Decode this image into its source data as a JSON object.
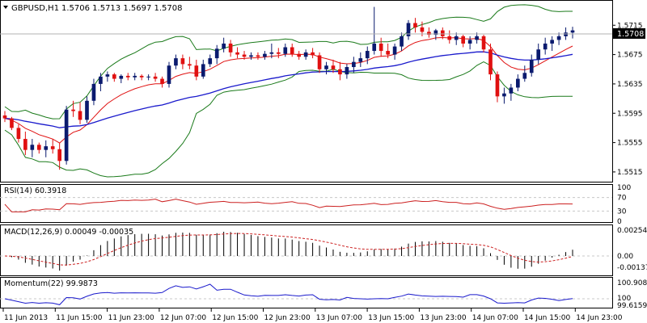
{
  "chart": {
    "symbol": "GBPUSD,H1",
    "ohlc_text": "1.5706 1.5713 1.5697 1.5708",
    "current_price": "1.5708",
    "price_ticks": [
      "1.5715",
      "1.5675",
      "1.5635",
      "1.5595",
      "1.5555",
      "1.5515"
    ],
    "time_labels": [
      "11 Jun 2013",
      "11 Jun 15:00",
      "11 Jun 23:00",
      "12 Jun 07:00",
      "12 Jun 15:00",
      "12 Jun 23:00",
      "13 Jun 07:00",
      "13 Jun 15:00",
      "13 Jun 23:00",
      "14 Jun 07:00",
      "14 Jun 15:00",
      "14 Jun 23:00"
    ]
  },
  "rsi": {
    "label": "RSI(14) 60.3918",
    "levels": [
      "100",
      "70",
      "30",
      "0"
    ]
  },
  "macd": {
    "label": "MACD(12,26,9) 0.00049 -0.00035",
    "ticks": [
      "0.00254",
      "0.00",
      "-0.00137"
    ]
  },
  "momentum": {
    "label": "Momentum(22) 99.9873",
    "ticks": [
      "100.9082",
      "100",
      "99.6159"
    ]
  },
  "colors": {
    "up_body": "#0a1a6e",
    "down_body": "#e01010",
    "bollinger": "#1a7a1a",
    "ma_fast": "#e01010",
    "ma_slow": "#1a1acc",
    "rsi_line": "#cc2020",
    "macd_hist": "#000000",
    "macd_signal": "#cc2020",
    "momentum_line": "#1a1acc",
    "grid": "#c8c8c8"
  },
  "chart_data": {
    "type": "candlestick",
    "candles": [
      [
        1.5592,
        1.5598,
        1.5583,
        1.5588
      ],
      [
        1.5588,
        1.559,
        1.5572,
        1.5575
      ],
      [
        1.5575,
        1.558,
        1.5555,
        1.556
      ],
      [
        1.556,
        1.557,
        1.5538,
        1.5545
      ],
      [
        1.5545,
        1.556,
        1.5535,
        1.5552
      ],
      [
        1.5552,
        1.5555,
        1.554,
        1.5545
      ],
      [
        1.5545,
        1.5558,
        1.5535,
        1.555
      ],
      [
        1.555,
        1.556,
        1.554,
        1.5546
      ],
      [
        1.5546,
        1.5555,
        1.5518,
        1.553
      ],
      [
        1.553,
        1.5605,
        1.5525,
        1.56
      ],
      [
        1.56,
        1.5612,
        1.559,
        1.5598
      ],
      [
        1.5598,
        1.561,
        1.558,
        1.5586
      ],
      [
        1.5586,
        1.5618,
        1.5582,
        1.5612
      ],
      [
        1.5612,
        1.5642,
        1.5606,
        1.5635
      ],
      [
        1.5635,
        1.565,
        1.5625,
        1.5645
      ],
      [
        1.5645,
        1.5652,
        1.5638,
        1.5648
      ],
      [
        1.5648,
        1.565,
        1.5638,
        1.5642
      ],
      [
        1.5642,
        1.5648,
        1.5636,
        1.5646
      ],
      [
        1.5646,
        1.565,
        1.564,
        1.5644
      ],
      [
        1.5644,
        1.565,
        1.564,
        1.5646
      ],
      [
        1.5646,
        1.5648,
        1.564,
        1.5644
      ],
      [
        1.5644,
        1.5648,
        1.564,
        1.5645
      ],
      [
        1.5645,
        1.565,
        1.5638,
        1.5642
      ],
      [
        1.5642,
        1.5645,
        1.563,
        1.5635
      ],
      [
        1.5635,
        1.5665,
        1.563,
        1.566
      ],
      [
        1.566,
        1.5675,
        1.5655,
        1.567
      ],
      [
        1.567,
        1.5675,
        1.5655,
        1.5662
      ],
      [
        1.5662,
        1.5672,
        1.5655,
        1.566
      ],
      [
        1.566,
        1.5668,
        1.564,
        1.5645
      ],
      [
        1.5645,
        1.5668,
        1.5642,
        1.5662
      ],
      [
        1.5662,
        1.5675,
        1.5658,
        1.567
      ],
      [
        1.567,
        1.5688,
        1.5662,
        1.5683
      ],
      [
        1.5683,
        1.5698,
        1.5678,
        1.569
      ],
      [
        1.569,
        1.5695,
        1.5672,
        1.5678
      ],
      [
        1.5678,
        1.5685,
        1.567,
        1.5675
      ],
      [
        1.5675,
        1.568,
        1.5668,
        1.5672
      ],
      [
        1.5672,
        1.5678,
        1.5668,
        1.5674
      ],
      [
        1.5674,
        1.5678,
        1.5668,
        1.5672
      ],
      [
        1.5672,
        1.568,
        1.5668,
        1.5676
      ],
      [
        1.5676,
        1.569,
        1.567,
        1.5678
      ],
      [
        1.5678,
        1.5684,
        1.567,
        1.5676
      ],
      [
        1.5676,
        1.569,
        1.5672,
        1.5685
      ],
      [
        1.5685,
        1.569,
        1.5672,
        1.5676
      ],
      [
        1.5676,
        1.568,
        1.5668,
        1.5672
      ],
      [
        1.5672,
        1.5682,
        1.5668,
        1.5678
      ],
      [
        1.5678,
        1.5684,
        1.567,
        1.5674
      ],
      [
        1.5674,
        1.5678,
        1.565,
        1.5655
      ],
      [
        1.5655,
        1.5665,
        1.5648,
        1.566
      ],
      [
        1.566,
        1.5668,
        1.565,
        1.5655
      ],
      [
        1.5655,
        1.5665,
        1.564,
        1.5648
      ],
      [
        1.5648,
        1.5662,
        1.5642,
        1.5658
      ],
      [
        1.5658,
        1.5672,
        1.565,
        1.5665
      ],
      [
        1.5665,
        1.5678,
        1.5658,
        1.567
      ],
      [
        1.567,
        1.5686,
        1.5662,
        1.568
      ],
      [
        1.568,
        1.574,
        1.5675,
        1.569
      ],
      [
        1.569,
        1.5698,
        1.5672,
        1.568
      ],
      [
        1.568,
        1.569,
        1.567,
        1.5675
      ],
      [
        1.5675,
        1.569,
        1.5668,
        1.5686
      ],
      [
        1.5686,
        1.5705,
        1.568,
        1.57
      ],
      [
        1.57,
        1.5722,
        1.5695,
        1.5718
      ],
      [
        1.5718,
        1.5725,
        1.5705,
        1.5712
      ],
      [
        1.5712,
        1.572,
        1.57,
        1.5706
      ],
      [
        1.5706,
        1.5712,
        1.5698,
        1.5702
      ],
      [
        1.5702,
        1.571,
        1.5695,
        1.5708
      ],
      [
        1.5708,
        1.5712,
        1.5696,
        1.57
      ],
      [
        1.57,
        1.5708,
        1.569,
        1.5695
      ],
      [
        1.5695,
        1.5705,
        1.5688,
        1.57
      ],
      [
        1.57,
        1.5702,
        1.5685,
        1.569
      ],
      [
        1.569,
        1.57,
        1.5682,
        1.5695
      ],
      [
        1.5695,
        1.5705,
        1.569,
        1.57
      ],
      [
        1.57,
        1.5702,
        1.5678,
        1.5682
      ],
      [
        1.5682,
        1.569,
        1.564,
        1.5648
      ],
      [
        1.5648,
        1.5652,
        1.561,
        1.5618
      ],
      [
        1.5618,
        1.563,
        1.5608,
        1.5622
      ],
      [
        1.5622,
        1.5635,
        1.5612,
        1.563
      ],
      [
        1.563,
        1.5648,
        1.5625,
        1.5642
      ],
      [
        1.5642,
        1.566,
        1.5638,
        1.565
      ],
      [
        1.565,
        1.5675,
        1.5645,
        1.5668
      ],
      [
        1.5668,
        1.569,
        1.5662,
        1.5682
      ],
      [
        1.5682,
        1.5698,
        1.5675,
        1.569
      ],
      [
        1.569,
        1.57,
        1.568,
        1.5695
      ],
      [
        1.5695,
        1.5705,
        1.5688,
        1.57
      ],
      [
        1.57,
        1.5712,
        1.5695,
        1.5705
      ],
      [
        1.5705,
        1.5713,
        1.5697,
        1.5708
      ]
    ],
    "y_range": [
      1.5505,
      1.5745
    ],
    "grid": false
  }
}
